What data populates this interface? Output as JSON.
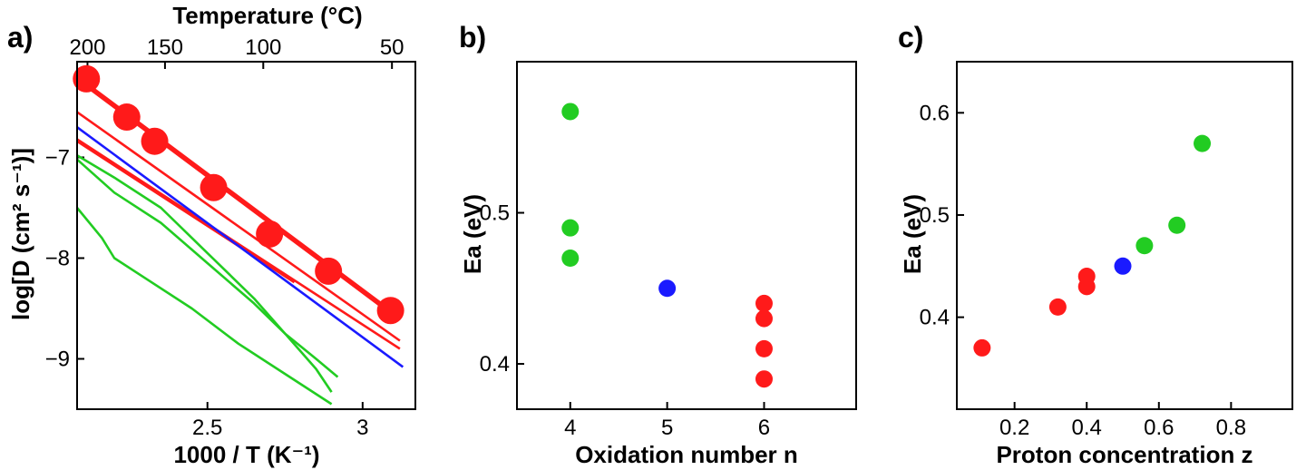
{
  "chart_data": [
    {
      "panel": "a)",
      "type": "line",
      "xlabel": "1000 / T (K⁻¹)",
      "ylabel": "log[D (cm² s⁻¹)]",
      "top_label": "Temperature (°C)",
      "xlim": [
        2.08,
        3.17
      ],
      "ylim": [
        -9.5,
        -6.05
      ],
      "x_ticks": [
        2.5,
        3.0
      ],
      "y_ticks": [
        -7,
        -8,
        -9
      ],
      "top_ticks": [
        200,
        150,
        100,
        50
      ],
      "points": {
        "color": "#ff1a1a",
        "x": [
          2.11,
          2.24,
          2.33,
          2.52,
          2.7,
          2.89,
          3.09
        ],
        "y": [
          -6.22,
          -6.6,
          -6.84,
          -7.3,
          -7.76,
          -8.13,
          -8.52
        ]
      },
      "fit": {
        "color": "#ff1a1a",
        "x": [
          2.11,
          3.11
        ],
        "y": [
          -6.28,
          -8.58
        ]
      },
      "series": [
        {
          "color": "#ff1a1a",
          "x": [
            2.08,
            3.12
          ],
          "y": [
            -6.55,
            -8.82
          ]
        },
        {
          "color": "#ff1a1a",
          "x": [
            2.08,
            3.12
          ],
          "y": [
            -6.82,
            -8.9
          ]
        },
        {
          "color": "#ff1a1a",
          "x": [
            2.08,
            2.78
          ],
          "y": [
            -6.84,
            -8.24
          ]
        },
        {
          "color": "#1a1aff",
          "x": [
            2.08,
            3.13
          ],
          "y": [
            -6.7,
            -9.08
          ]
        },
        {
          "color": "#22cc22",
          "x": [
            2.08,
            2.2,
            2.35,
            2.5,
            2.65,
            2.75,
            2.85,
            2.92
          ],
          "y": [
            -7.02,
            -7.35,
            -7.65,
            -8.05,
            -8.45,
            -8.75,
            -9.0,
            -9.18
          ]
        },
        {
          "color": "#22cc22",
          "x": [
            2.08,
            2.2,
            2.35,
            2.5,
            2.65,
            2.75,
            2.85,
            2.9
          ],
          "y": [
            -6.98,
            -7.2,
            -7.5,
            -7.95,
            -8.4,
            -8.75,
            -9.1,
            -9.33
          ]
        },
        {
          "color": "#22cc22",
          "x": [
            2.08,
            2.16,
            2.2,
            2.3,
            2.45,
            2.6,
            2.75,
            2.9
          ],
          "y": [
            -7.5,
            -7.8,
            -8.0,
            -8.2,
            -8.5,
            -8.85,
            -9.15,
            -9.45
          ]
        }
      ]
    },
    {
      "panel": "b)",
      "type": "scatter",
      "xlabel": "Oxidation number n",
      "ylabel": "Ea (eV)",
      "xlim": [
        3.45,
        6.95
      ],
      "ylim": [
        0.37,
        0.6
      ],
      "x_ticks": [
        4,
        5,
        6
      ],
      "y_ticks": [
        0.4,
        0.5
      ],
      "points": [
        {
          "x": 4,
          "y": 0.567,
          "color": "#22cc22"
        },
        {
          "x": 4,
          "y": 0.49,
          "color": "#22cc22"
        },
        {
          "x": 4,
          "y": 0.47,
          "color": "#22cc22"
        },
        {
          "x": 5,
          "y": 0.45,
          "color": "#1a1aff"
        },
        {
          "x": 6,
          "y": 0.44,
          "color": "#ff1a1a"
        },
        {
          "x": 6,
          "y": 0.43,
          "color": "#ff1a1a"
        },
        {
          "x": 6,
          "y": 0.41,
          "color": "#ff1a1a"
        },
        {
          "x": 6,
          "y": 0.39,
          "color": "#ff1a1a"
        }
      ]
    },
    {
      "panel": "c)",
      "type": "scatter",
      "xlabel": "Proton concentration z",
      "ylabel": "Ea (eV)",
      "xlim": [
        0.04,
        0.97
      ],
      "ylim": [
        0.31,
        0.65
      ],
      "x_ticks": [
        0.2,
        0.4,
        0.6,
        0.8
      ],
      "y_ticks": [
        0.4,
        0.5,
        0.6
      ],
      "points": [
        {
          "x": 0.11,
          "y": 0.37,
          "color": "#ff1a1a"
        },
        {
          "x": 0.32,
          "y": 0.41,
          "color": "#ff1a1a"
        },
        {
          "x": 0.4,
          "y": 0.43,
          "color": "#ff1a1a"
        },
        {
          "x": 0.4,
          "y": 0.44,
          "color": "#ff1a1a"
        },
        {
          "x": 0.5,
          "y": 0.45,
          "color": "#1a1aff"
        },
        {
          "x": 0.56,
          "y": 0.47,
          "color": "#22cc22"
        },
        {
          "x": 0.65,
          "y": 0.49,
          "color": "#22cc22"
        },
        {
          "x": 0.72,
          "y": 0.57,
          "color": "#22cc22"
        }
      ]
    }
  ]
}
